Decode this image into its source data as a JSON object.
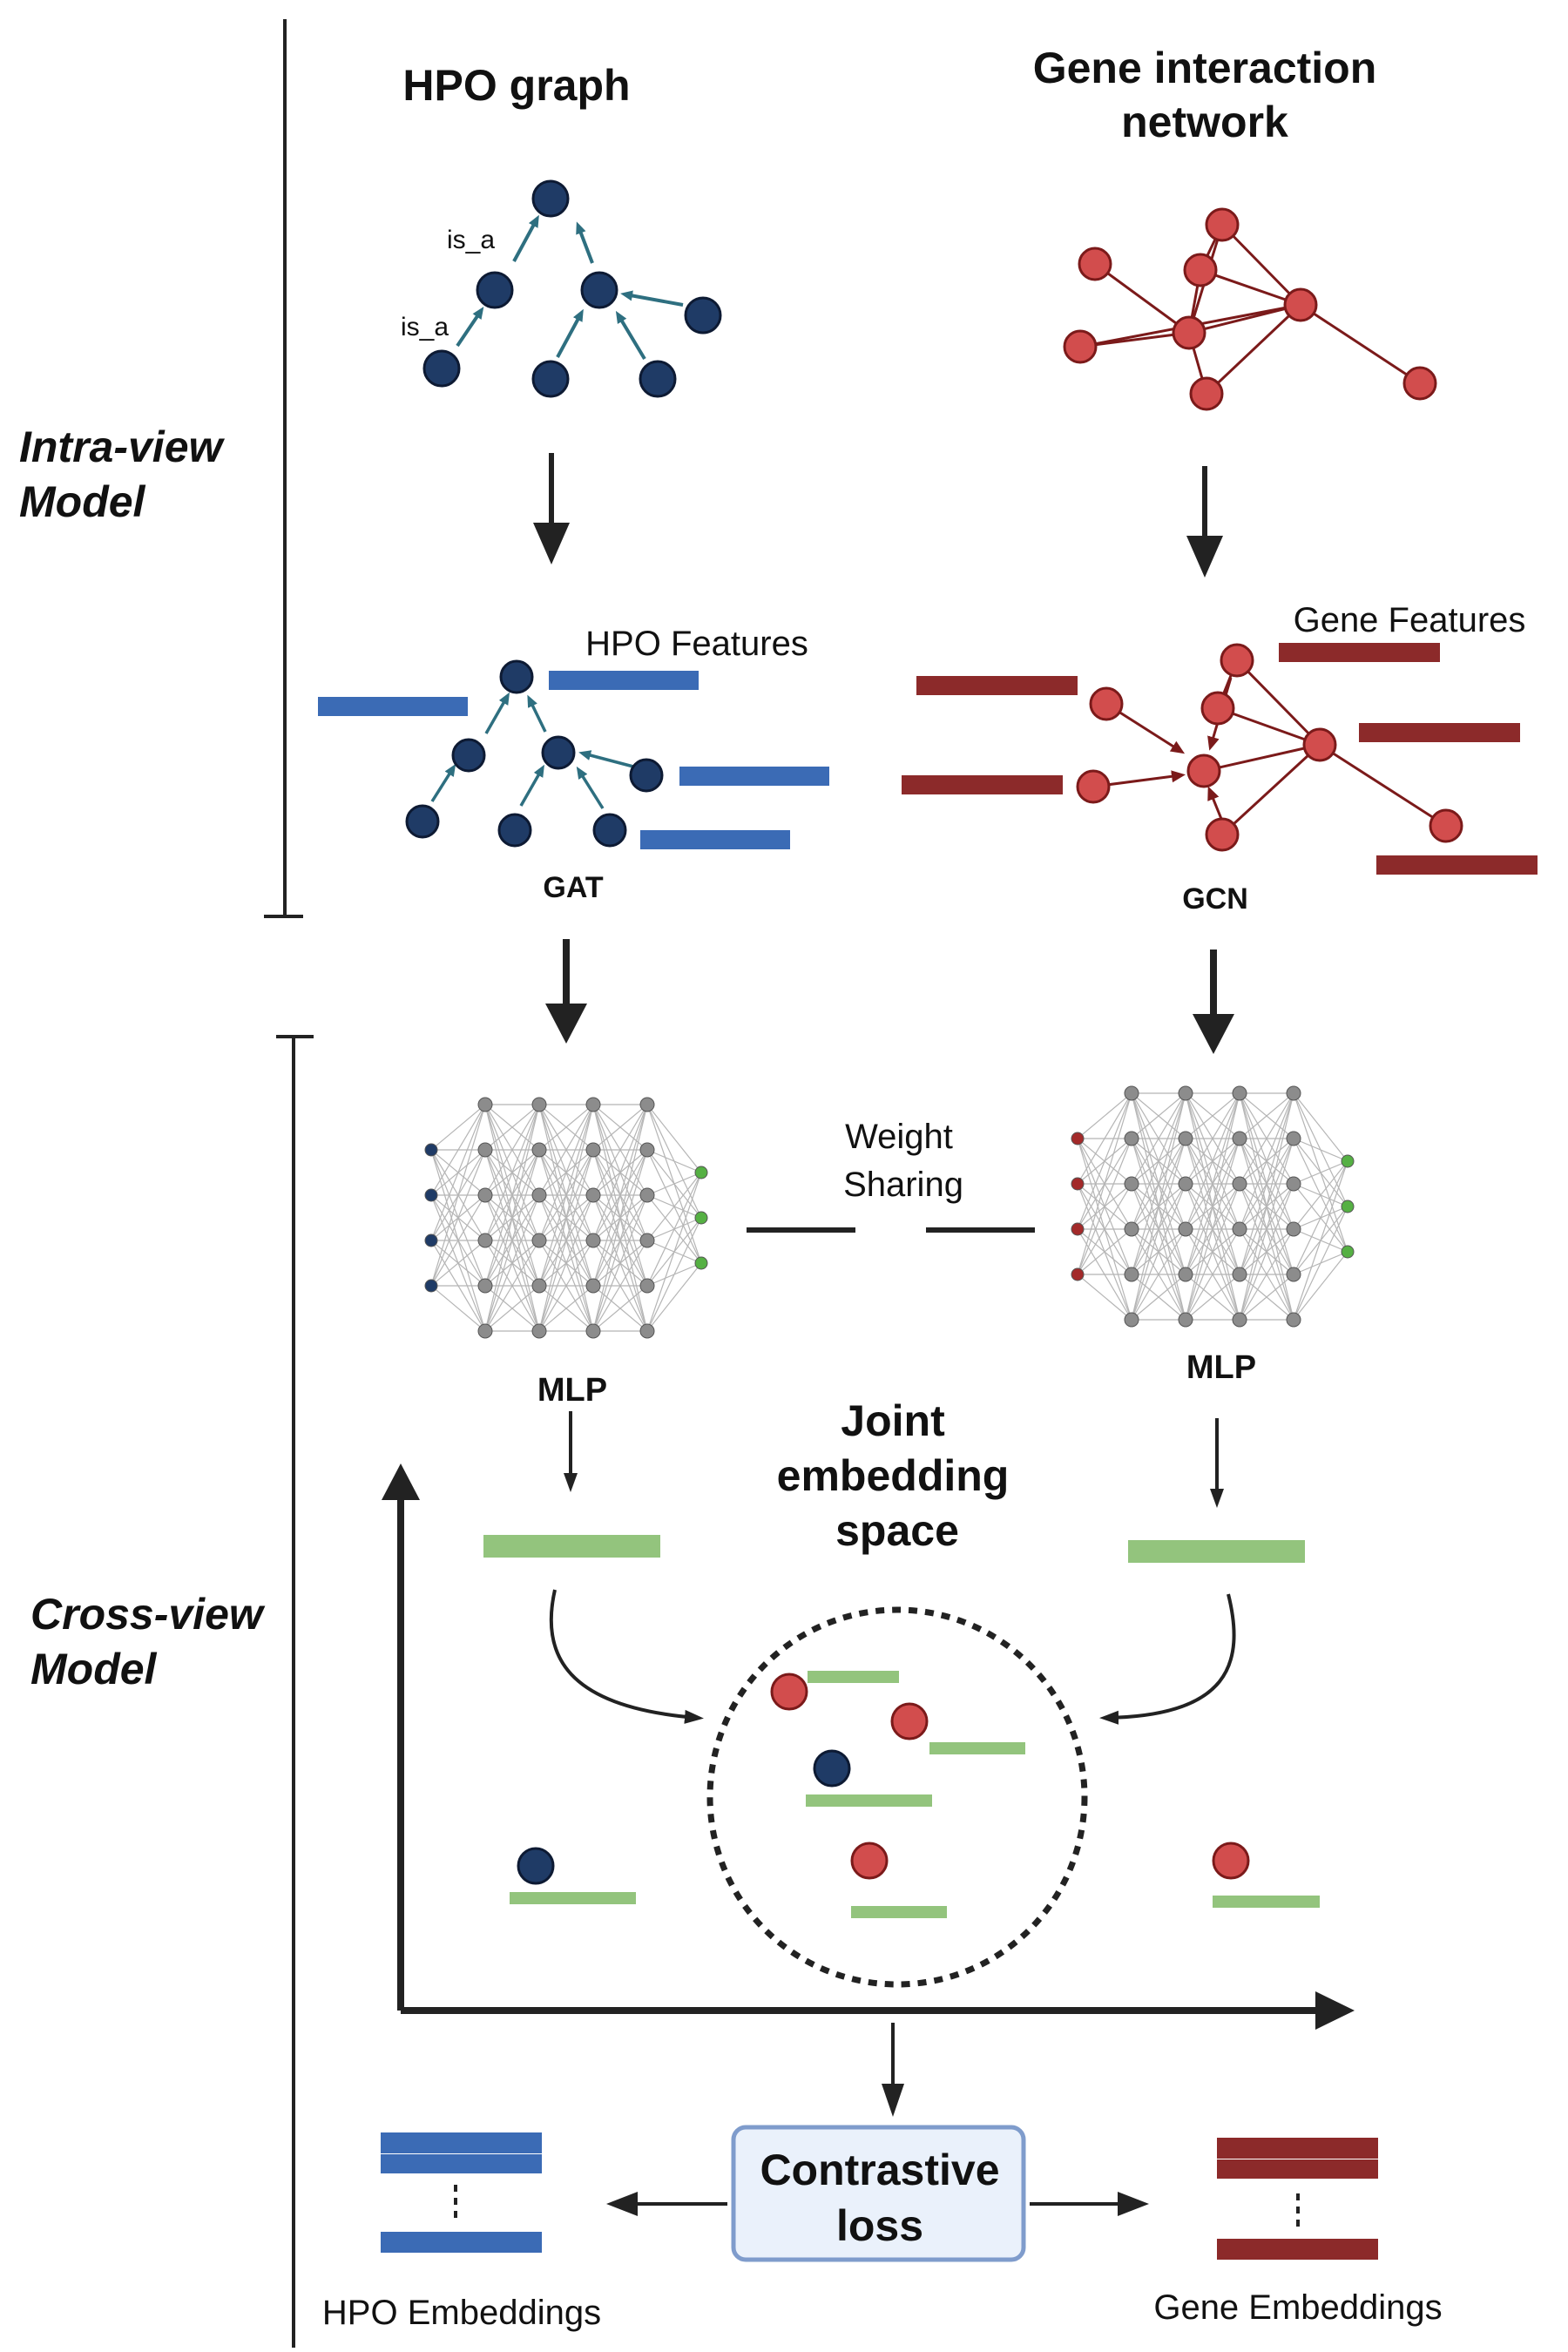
{
  "colors": {
    "hpo_node": "#1f3b66",
    "hpo_bar": "#3b6bb5",
    "hpo_edge": "#2e6f80",
    "gene_node": "#d24d4d",
    "gene_edge": "#7b1a1a",
    "gene_bar": "#8c2a2a",
    "embedding_bar": "#93c47d",
    "mlp_node": "#8c8c8c",
    "mlp_output": "#55b043",
    "loss_fill": "#eaf1fb",
    "loss_border": "#7f9ccc"
  },
  "sections": {
    "intra_view": "Intra-view Model",
    "cross_view": "Cross-view Model"
  },
  "hpo": {
    "title": "HPO graph",
    "edge_label_1": "is_a",
    "edge_label_2": "is_a",
    "features_label": "HPO Features",
    "encoder": "GAT",
    "mlp": "MLP",
    "embeddings_label": "HPO Embeddings"
  },
  "gene": {
    "title_line1": "Gene interaction",
    "title_line2": "network",
    "features_label": "Gene Features",
    "encoder": "GCN",
    "mlp": "MLP",
    "embeddings_label": "Gene Embeddings"
  },
  "shared": {
    "weight_sharing_line1": "Weight",
    "weight_sharing_line2": "Sharing",
    "joint_line1": "Joint",
    "joint_line2": "embedding",
    "joint_line3": "space",
    "loss_line1": "Contrastive",
    "loss_line2": "loss"
  }
}
